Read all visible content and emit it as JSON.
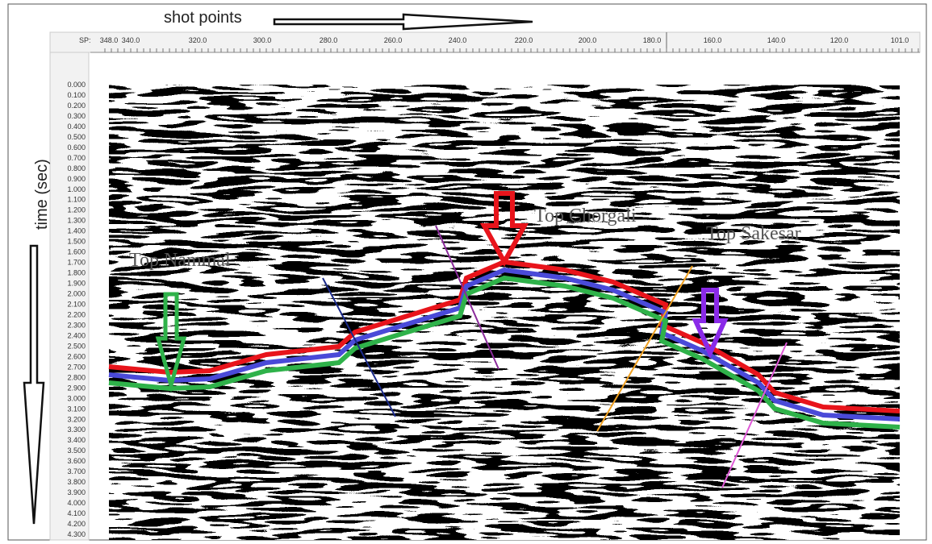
{
  "header": {
    "x_title": "shot points",
    "y_title": "time (sec)",
    "sp_label": "SP:"
  },
  "x_ticks": [
    "348.0",
    "340.0",
    "320.0",
    "300.0",
    "280.0",
    "260.0",
    "240.0",
    "220.0",
    "200.0",
    "180.0",
    "160.0",
    "140.0",
    "120.0",
    "101.0"
  ],
  "y_ticks": [
    "0.000",
    "0.100",
    "0.200",
    "0.300",
    "0.400",
    "0.500",
    "0.600",
    "0.700",
    "0.800",
    "0.900",
    "1.000",
    "1.100",
    "1.200",
    "1.300",
    "1.400",
    "1.500",
    "1.600",
    "1.700",
    "1.800",
    "1.900",
    "2.000",
    "2.100",
    "2.200",
    "2.300",
    "2.400",
    "2.500",
    "2.600",
    "2.700",
    "2.800",
    "2.900",
    "3.000",
    "3.100",
    "3.200",
    "3.300",
    "3.400",
    "3.500",
    "3.600",
    "3.700",
    "3.800",
    "3.900",
    "4.000",
    "4.100",
    "4.200",
    "4.300"
  ],
  "annotations": [
    "Top Nammal",
    "Top Chorgali",
    "Top Sakesar"
  ]
}
